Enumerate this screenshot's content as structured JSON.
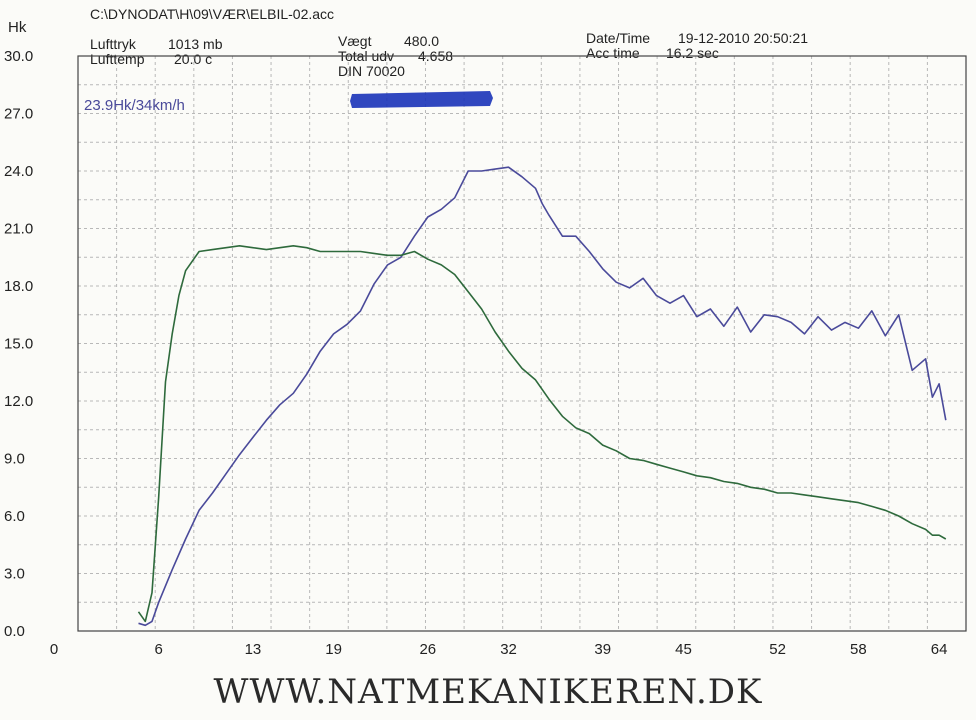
{
  "header": {
    "file_path": "C:\\DYNODAT\\H\\09\\VÆR\\ELBIL-02.acc",
    "lufttryk_label": "Lufttryk",
    "lufttryk_value": "1013 mb",
    "lufttemp_label": "Lufttemp",
    "lufttemp_value": "20.0 c",
    "vaegt_label": "Vægt",
    "vaegt_value": "480.0",
    "total_udv_label": "Total udv",
    "total_udv_value": "4.658",
    "din_label": "DIN 70020",
    "datetime_label": "Date/Time",
    "datetime_value": "19-12-2010 20:50:21",
    "acc_time_label": "Acc time",
    "acc_time_value": "16.2 sec"
  },
  "footer": {
    "website": "WWW.NATMEKANIKEREN.DK"
  },
  "colors": {
    "power_series": "#4a4a9a",
    "torque_series": "#2e6a3c",
    "grid": "#b8b8b8",
    "redaction": "#1a33b8"
  },
  "chart_data": {
    "type": "line",
    "ylabel": "Hk",
    "ylim": [
      0,
      30
    ],
    "xlim": [
      0,
      66
    ],
    "y_ticks": [
      "0.0",
      "3.0",
      "6.0",
      "9.0",
      "12.0",
      "15.0",
      "18.0",
      "21.0",
      "24.0",
      "27.0",
      "30.0"
    ],
    "x_ticks": [
      "0",
      "6",
      "13",
      "19",
      "26",
      "32",
      "39",
      "45",
      "52",
      "58",
      "64"
    ],
    "grid": true,
    "annotation": "23.9Hk/34km/h",
    "series": [
      {
        "x": [
          4.5,
          5,
          5.5,
          6,
          7,
          8,
          9,
          10,
          11,
          12,
          13,
          14,
          15,
          16,
          17,
          18,
          19,
          20,
          21,
          22,
          23,
          24,
          25,
          26,
          27,
          28,
          29,
          30,
          31,
          32,
          33,
          34,
          34.5,
          35,
          36,
          37,
          38,
          39,
          40,
          41,
          42,
          43,
          44,
          45,
          46,
          47,
          48,
          49,
          50,
          51,
          52,
          53,
          54,
          55,
          56,
          57,
          58,
          59,
          60,
          61,
          62,
          63,
          63.5,
          64,
          64.5
        ],
        "y": [
          0.4,
          0.3,
          0.5,
          1.5,
          3.2,
          4.8,
          6.3,
          7.2,
          8.2,
          9.2,
          10.1,
          11.0,
          11.8,
          12.4,
          13.4,
          14.6,
          15.5,
          16.0,
          16.7,
          18.1,
          19.1,
          19.5,
          20.6,
          21.6,
          22.0,
          22.6,
          24.0,
          24.0,
          24.1,
          24.2,
          23.7,
          23.1,
          22.3,
          21.7,
          20.6,
          20.6,
          19.8,
          18.9,
          18.2,
          17.9,
          18.4,
          17.5,
          17.1,
          17.5,
          16.4,
          16.8,
          15.9,
          16.9,
          15.6,
          16.5,
          16.4,
          16.1,
          15.5,
          16.4,
          15.7,
          16.1,
          15.8,
          16.7,
          15.4,
          16.5,
          13.6,
          14.2,
          12.2,
          12.9,
          11.0
        ]
      },
      {
        "x": [
          4.5,
          5,
          5.5,
          6,
          6.5,
          7,
          7.5,
          8,
          9,
          10,
          11,
          12,
          13,
          14,
          15,
          16,
          17,
          18,
          19,
          20,
          21,
          22,
          23,
          24,
          25,
          26,
          27,
          28,
          29,
          30,
          31,
          32,
          33,
          34,
          35,
          36,
          37,
          38,
          39,
          40,
          41,
          42,
          43,
          44,
          45,
          46,
          47,
          48,
          49,
          50,
          51,
          52,
          53,
          54,
          55,
          56,
          57,
          58,
          59,
          60,
          61,
          62,
          63,
          63.5,
          64,
          64.5
        ],
        "y": [
          1.0,
          0.5,
          2.0,
          7.0,
          13.0,
          15.5,
          17.5,
          18.8,
          19.8,
          19.9,
          20.0,
          20.1,
          20.0,
          19.9,
          20.0,
          20.1,
          20.0,
          19.8,
          19.8,
          19.8,
          19.8,
          19.7,
          19.6,
          19.6,
          19.8,
          19.4,
          19.1,
          18.6,
          17.7,
          16.8,
          15.6,
          14.6,
          13.7,
          13.1,
          12.1,
          11.2,
          10.6,
          10.3,
          9.7,
          9.4,
          9.0,
          8.9,
          8.7,
          8.5,
          8.3,
          8.1,
          8.0,
          7.8,
          7.7,
          7.5,
          7.4,
          7.2,
          7.2,
          7.1,
          7.0,
          6.9,
          6.8,
          6.7,
          6.5,
          6.3,
          6.0,
          5.6,
          5.3,
          5.0,
          5.0,
          4.8
        ]
      }
    ]
  }
}
